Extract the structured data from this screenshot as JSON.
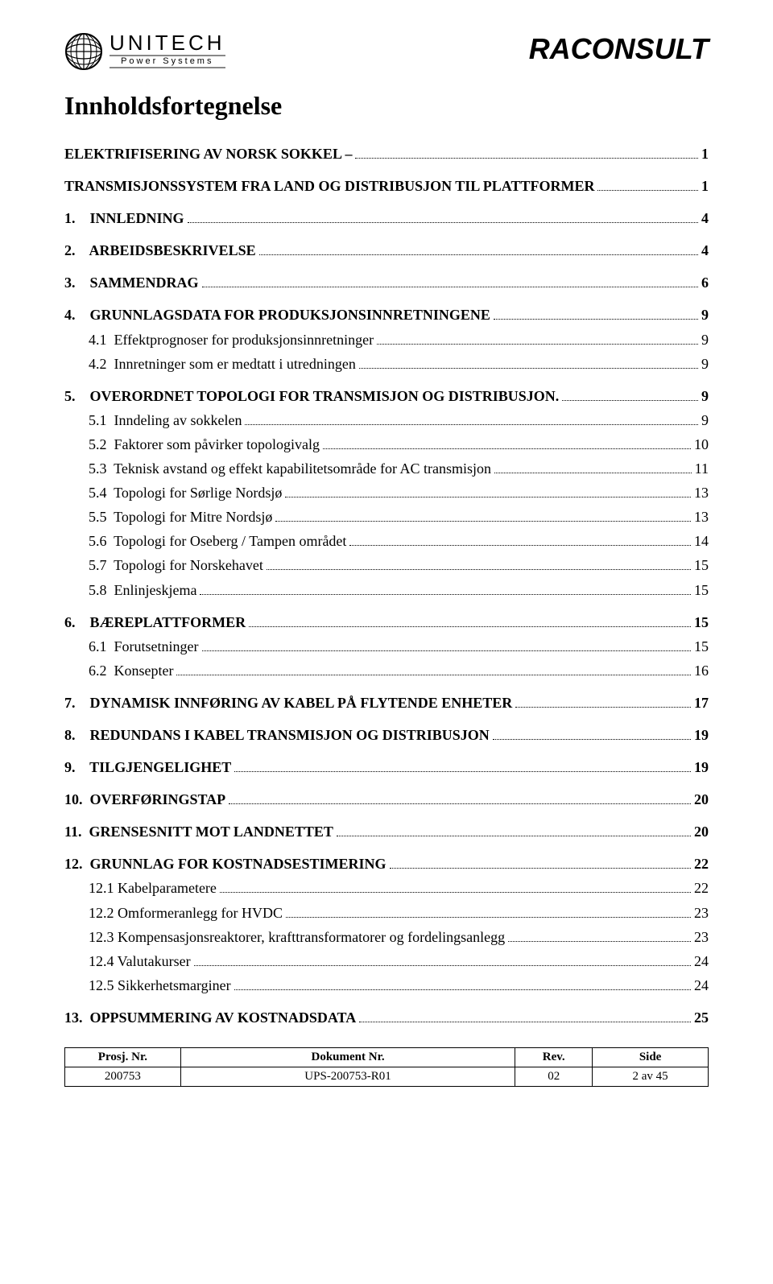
{
  "header": {
    "logo_main": "UNITECH",
    "logo_sub": "Power Systems",
    "right_brand": "RACONSULT"
  },
  "title": "Innholdsfortegnelse",
  "toc": [
    {
      "label": "ELEKTRIFISERING AV NORSK SOKKEL –",
      "page": "1",
      "bold": true,
      "gap": false
    },
    {
      "label": "TRANSMISJONSSYSTEM FRA LAND OG DISTRIBUSJON TIL PLATTFORMER",
      "page": "1",
      "bold": true,
      "gap": true
    },
    {
      "label": "1.    INNLEDNING",
      "page": "4",
      "bold": true,
      "gap": true
    },
    {
      "label": "2.    ARBEIDSBESKRIVELSE",
      "page": "4",
      "bold": true,
      "gap": true
    },
    {
      "label": "3.    SAMMENDRAG",
      "page": "6",
      "bold": true,
      "gap": true
    },
    {
      "label": "4.    GRUNNLAGSDATA FOR PRODUKSJONSINNRETNINGENE",
      "page": "9",
      "bold": true,
      "gap": true
    },
    {
      "label": "4.1  Effektprognoser for produksjonsinnretninger",
      "page": "9",
      "bold": false,
      "gap": false,
      "indent": true
    },
    {
      "label": "4.2  Innretninger som er medtatt i utredningen",
      "page": "9",
      "bold": false,
      "gap": false,
      "indent": true
    },
    {
      "label": "5.    OVERORDNET TOPOLOGI FOR TRANSMISJON OG DISTRIBUSJON.",
      "page": "9",
      "bold": true,
      "gap": true
    },
    {
      "label": "5.1  Inndeling av sokkelen",
      "page": "9",
      "bold": false,
      "gap": false,
      "indent": true
    },
    {
      "label": "5.2  Faktorer som påvirker topologivalg",
      "page": "10",
      "bold": false,
      "gap": false,
      "indent": true
    },
    {
      "label": "5.3  Teknisk avstand og effekt kapabilitetsområde for AC transmisjon",
      "page": "11",
      "bold": false,
      "gap": false,
      "indent": true
    },
    {
      "label": "5.4  Topologi for Sørlige Nordsjø",
      "page": "13",
      "bold": false,
      "gap": false,
      "indent": true
    },
    {
      "label": "5.5  Topologi for Mitre Nordsjø",
      "page": "13",
      "bold": false,
      "gap": false,
      "indent": true
    },
    {
      "label": "5.6  Topologi for Oseberg / Tampen området",
      "page": "14",
      "bold": false,
      "gap": false,
      "indent": true
    },
    {
      "label": "5.7  Topologi for Norskehavet",
      "page": "15",
      "bold": false,
      "gap": false,
      "indent": true
    },
    {
      "label": "5.8  Enlinjeskjema",
      "page": "15",
      "bold": false,
      "gap": false,
      "indent": true
    },
    {
      "label": "6.    BÆREPLATTFORMER",
      "page": "15",
      "bold": true,
      "gap": true
    },
    {
      "label": "6.1  Forutsetninger",
      "page": "15",
      "bold": false,
      "gap": false,
      "indent": true
    },
    {
      "label": "6.2  Konsepter",
      "page": "16",
      "bold": false,
      "gap": false,
      "indent": true
    },
    {
      "label": "7.    DYNAMISK INNFØRING AV KABEL PÅ FLYTENDE ENHETER",
      "page": "17",
      "bold": true,
      "gap": true
    },
    {
      "label": "8.    REDUNDANS I KABEL TRANSMISJON OG DISTRIBUSJON",
      "page": "19",
      "bold": true,
      "gap": true
    },
    {
      "label": "9.    TILGJENGELIGHET",
      "page": "19",
      "bold": true,
      "gap": true
    },
    {
      "label": "10.  OVERFØRINGSTAP",
      "page": "20",
      "bold": true,
      "gap": true
    },
    {
      "label": "11.  GRENSESNITT MOT LANDNETTET",
      "page": "20",
      "bold": true,
      "gap": true
    },
    {
      "label": "12.  GRUNNLAG FOR KOSTNADSESTIMERING",
      "page": "22",
      "bold": true,
      "gap": true
    },
    {
      "label": "12.1 Kabelparametere",
      "page": "22",
      "bold": false,
      "gap": false,
      "indent": true
    },
    {
      "label": "12.2 Omformeranlegg for HVDC",
      "page": "23",
      "bold": false,
      "gap": false,
      "indent": true
    },
    {
      "label": "12.3 Kompensasjonsreaktorer, krafttransformatorer og fordelingsanlegg",
      "page": "23",
      "bold": false,
      "gap": false,
      "indent": true
    },
    {
      "label": "12.4 Valutakurser",
      "page": "24",
      "bold": false,
      "gap": false,
      "indent": true
    },
    {
      "label": "12.5 Sikkerhetsmarginer",
      "page": "24",
      "bold": false,
      "gap": false,
      "indent": true
    },
    {
      "label": "13.  OPPSUMMERING AV KOSTNADSDATA",
      "page": "25",
      "bold": true,
      "gap": true
    }
  ],
  "footer": {
    "headers": [
      "Prosj. Nr.",
      "Dokument Nr.",
      "Rev.",
      "Side"
    ],
    "values": [
      "200753",
      "UPS-200753-R01",
      "02",
      "2 av 45"
    ]
  },
  "colors": {
    "text": "#000000",
    "background": "#ffffff",
    "logo_border": "#888888"
  }
}
